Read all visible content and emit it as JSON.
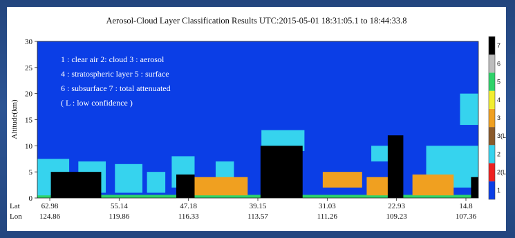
{
  "chart_data": {
    "type": "heatmap",
    "title": "Aerosol-Cloud Layer Classification Results UTC:2015-05-01 18:31:05.1 to 18:44:33.8",
    "ylabel": "Altitude(km)",
    "ylim": [
      0,
      30
    ],
    "yticks": [
      "0",
      "5",
      "10",
      "15",
      "20",
      "25",
      "30"
    ],
    "x_rows": [
      {
        "label": "Lat",
        "ticks": [
          "62.98",
          "55.14",
          "47.18",
          "39.15",
          "31.03",
          "22.93",
          "14.8"
        ]
      },
      {
        "label": "Lon",
        "ticks": [
          "124.86",
          "119.86",
          "116.33",
          "113.57",
          "111.26",
          "109.23",
          "107.36"
        ]
      }
    ],
    "legend_lines": [
      "1 : clear air   2: cloud   3 : aerosol",
      "4 : stratospheric layer  5 : surface",
      "6 : subsurface  7 : total attenuated",
      "( L : low confidence )"
    ],
    "colorbar": [
      {
        "label": "1",
        "color": "#0b3ee6"
      },
      {
        "label": "2(L)",
        "color": "#ee2020"
      },
      {
        "label": "2",
        "color": "#36d3ee"
      },
      {
        "label": "3(L)",
        "color": "#8a5a2a"
      },
      {
        "label": "3",
        "color": "#f0a020"
      },
      {
        "label": "4",
        "color": "#f2ee30"
      },
      {
        "label": "5",
        "color": "#2fd36a"
      },
      {
        "label": "6",
        "color": "#bdbdbd"
      },
      {
        "label": "7",
        "color": "#000000"
      }
    ],
    "layers": {
      "cloud": [
        {
          "x": [
            62.98,
            59.5
          ],
          "y": [
            0.5,
            7.5
          ]
        },
        {
          "x": [
            58.5,
            55.5
          ],
          "y": [
            1,
            7
          ]
        },
        {
          "x": [
            54.5,
            51.5
          ],
          "y": [
            1,
            6.5
          ]
        },
        {
          "x": [
            51.0,
            49.0
          ],
          "y": [
            1,
            5
          ]
        },
        {
          "x": [
            48.3,
            45.8
          ],
          "y": [
            2,
            8
          ]
        },
        {
          "x": [
            43.5,
            41.5
          ],
          "y": [
            3,
            7
          ]
        },
        {
          "x": [
            38.5,
            33.8
          ],
          "y": [
            9,
            13
          ]
        },
        {
          "x": [
            26.5,
            24.5
          ],
          "y": [
            7,
            10
          ]
        },
        {
          "x": [
            20.5,
            14.8
          ],
          "y": [
            2,
            10
          ]
        },
        {
          "x": [
            16.8,
            14.8
          ],
          "y": [
            14,
            20
          ]
        }
      ],
      "aerosol": [
        {
          "x": [
            47.5,
            40.0
          ],
          "y": [
            0.5,
            4
          ]
        },
        {
          "x": [
            31.8,
            27.5
          ],
          "y": [
            2,
            5
          ]
        },
        {
          "x": [
            27.0,
            23.5
          ],
          "y": [
            0.5,
            4
          ]
        },
        {
          "x": [
            22.0,
            17.5
          ],
          "y": [
            0.5,
            4.5
          ]
        }
      ],
      "total_attenuated": [
        {
          "x": [
            61.5,
            56.0
          ],
          "y": [
            0,
            5
          ]
        },
        {
          "x": [
            47.8,
            45.8
          ],
          "y": [
            0,
            4.5
          ]
        },
        {
          "x": [
            38.6,
            34.0
          ],
          "y": [
            0,
            10
          ]
        },
        {
          "x": [
            24.7,
            23.0
          ],
          "y": [
            0,
            12
          ]
        },
        {
          "x": [
            15.6,
            14.8
          ],
          "y": [
            0,
            4
          ]
        }
      ]
    }
  }
}
